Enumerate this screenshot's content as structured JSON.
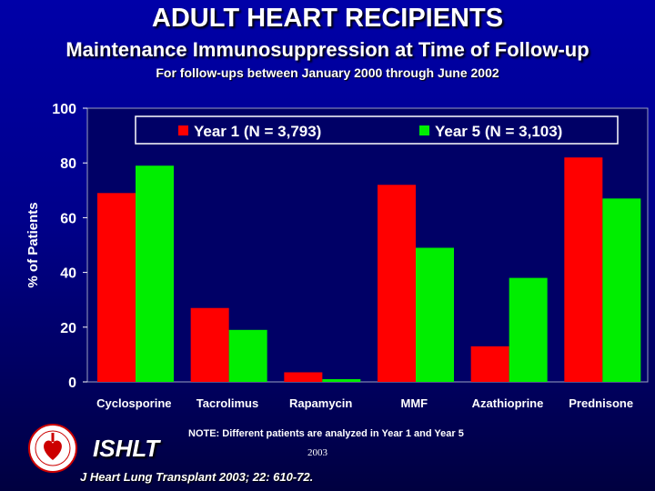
{
  "header": {
    "title": "ADULT HEART RECIPIENTS",
    "subtitle": "Maintenance Immunosuppression at Time of Follow-up",
    "subsubtitle": "For follow-ups between January 2000 through June 2002"
  },
  "footer": {
    "org": "ISHLT",
    "note": "NOTE: Different patients are analyzed in Year 1 and Year 5",
    "year": "2003",
    "citation": "J Heart Lung Transplant 2003; 22: 610-72."
  },
  "chart_data": {
    "type": "bar",
    "title": "",
    "xlabel": "",
    "ylabel": "% of Patients",
    "ylim": [
      0,
      100
    ],
    "yticks": [
      0,
      20,
      40,
      60,
      80,
      100
    ],
    "grid": false,
    "legend_position": "top",
    "categories": [
      "Cyclosporine",
      "Tacrolimus",
      "Rapamycin",
      "MMF",
      "Azathioprine",
      "Prednisone"
    ],
    "series": [
      {
        "name": "Year 1 (N = 3,793)",
        "color": "#ff0000",
        "values": [
          69,
          27,
          3.5,
          72,
          13,
          82
        ]
      },
      {
        "name": "Year 5 (N = 3,103)",
        "color": "#00ee00",
        "values": [
          79,
          19,
          1,
          49,
          38,
          67
        ]
      }
    ]
  }
}
